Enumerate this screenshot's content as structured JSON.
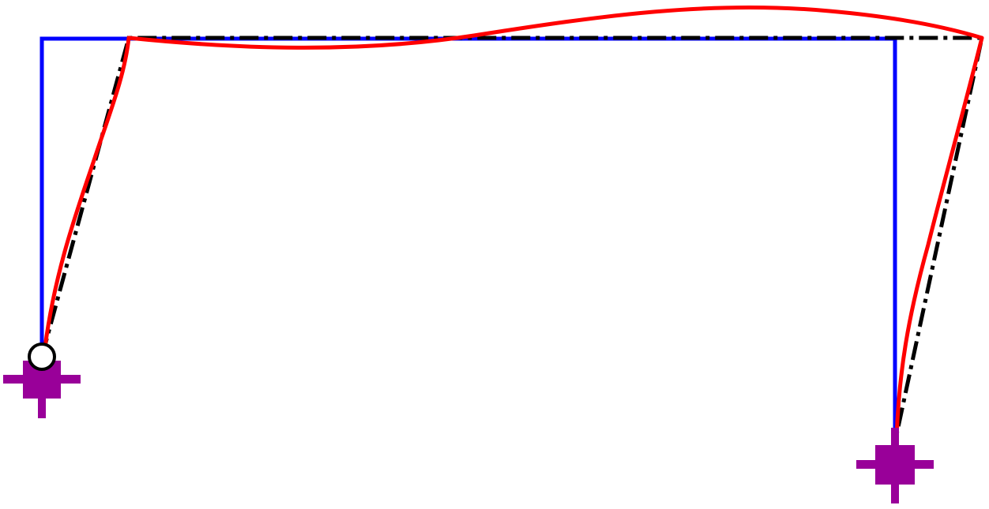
{
  "diagram": {
    "description_visible_text": "",
    "colors": {
      "original_frame": "#0000ff",
      "rigid_displaced_frame": "#000000",
      "deflected_shape": "#ff0000",
      "support": "#990099",
      "hinge_fill": "#ffffff",
      "hinge_stroke": "#000000"
    },
    "elements": [
      {
        "name": "original-frame",
        "style": "solid"
      },
      {
        "name": "rigid-displaced-frame",
        "style": "dash-dot"
      },
      {
        "name": "deflected-shape",
        "style": "solid-curve"
      },
      {
        "name": "left-pinned-support",
        "kind": "pin"
      },
      {
        "name": "right-fixed-support",
        "kind": "fixed"
      }
    ]
  }
}
